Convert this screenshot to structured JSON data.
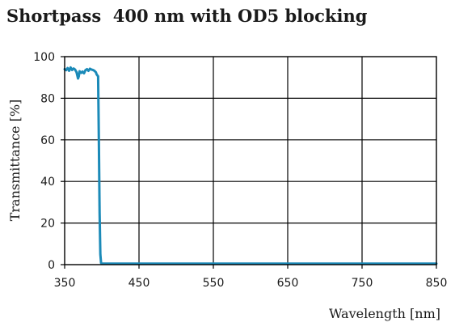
{
  "chart_data": {
    "type": "line",
    "title": "Shortpass  400 nm with OD5 blocking",
    "xlabel": "Wavelength [nm]",
    "ylabel": "Transmittance [%]",
    "xlim": [
      350,
      850
    ],
    "ylim": [
      0,
      100
    ],
    "x_ticks": [
      350,
      450,
      550,
      650,
      750,
      850
    ],
    "y_ticks": [
      0,
      20,
      40,
      60,
      80,
      100
    ],
    "grid": true,
    "legend": "none",
    "series": [
      {
        "color": "#1b8ab8",
        "x": [
          350,
          352,
          354,
          356,
          358,
          360,
          362,
          364,
          366,
          368,
          369,
          370,
          372,
          374,
          376,
          378,
          380,
          382,
          384,
          386,
          388,
          390,
          392,
          393,
          394,
          395,
          396,
          397,
          398,
          399,
          400,
          402,
          420,
          500,
          600,
          700,
          800,
          850
        ],
        "y": [
          94,
          93.5,
          94.5,
          93.2,
          94.8,
          93.6,
          94.3,
          93.8,
          92.5,
          89.5,
          90.5,
          93,
          92.2,
          92.8,
          92,
          93.5,
          94,
          93.2,
          94.2,
          93.8,
          93.6,
          93.2,
          92.5,
          91.5,
          91,
          90.5,
          60,
          25,
          5,
          0.8,
          0.5,
          0.5,
          0.5,
          0.5,
          0.5,
          0.5,
          0.5,
          0.5
        ]
      }
    ]
  }
}
